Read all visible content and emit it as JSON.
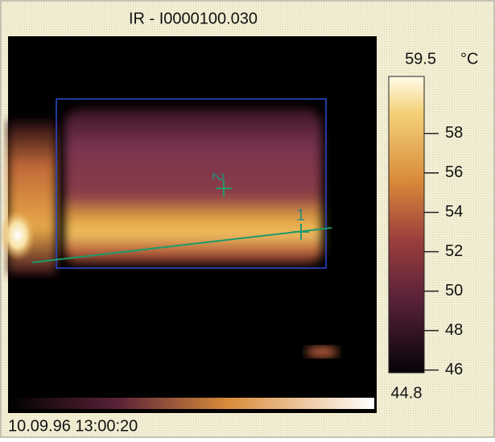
{
  "window": {
    "title": "IR - I0000100.030",
    "timestamp": "10.09.96 13:00:20"
  },
  "image": {
    "markers": [
      "1",
      "2"
    ]
  },
  "colorbar": {
    "range": [
      44.8,
      59.5
    ],
    "unit": "°C",
    "ticks": [
      58,
      56,
      54,
      52,
      50,
      48,
      46
    ]
  }
}
